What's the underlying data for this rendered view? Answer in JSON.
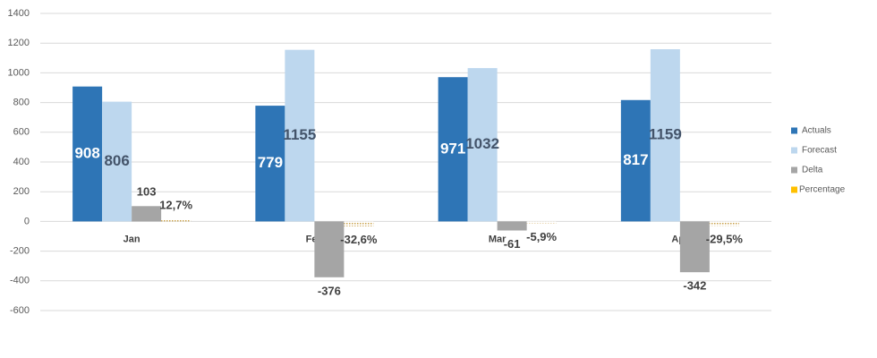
{
  "chart_data": {
    "type": "bar",
    "categories": [
      "Jan",
      "Feb",
      "Mar",
      "Apr"
    ],
    "series": [
      {
        "name": "Actuals",
        "color": "#2e75b6",
        "values": [
          908,
          779,
          971,
          817
        ]
      },
      {
        "name": "Forecast",
        "color": "#bdd7ee",
        "values": [
          806,
          1155,
          1032,
          1159
        ]
      },
      {
        "name": "Delta",
        "color": "#a5a5a5",
        "values": [
          103,
          -376,
          -61,
          -342
        ]
      },
      {
        "name": "Percentage",
        "color": "#ffc000",
        "values": [
          12.7,
          -32.6,
          -5.9,
          -29.5
        ],
        "value_labels": [
          "12,7%",
          "-32,6%",
          "-5,9%",
          "-29,5%"
        ]
      }
    ],
    "ylim": [
      -600,
      1400
    ],
    "yticks": [
      -600,
      -400,
      -200,
      0,
      200,
      400,
      600,
      800,
      1000,
      1200,
      1400
    ],
    "grid": true,
    "legend": "right"
  }
}
